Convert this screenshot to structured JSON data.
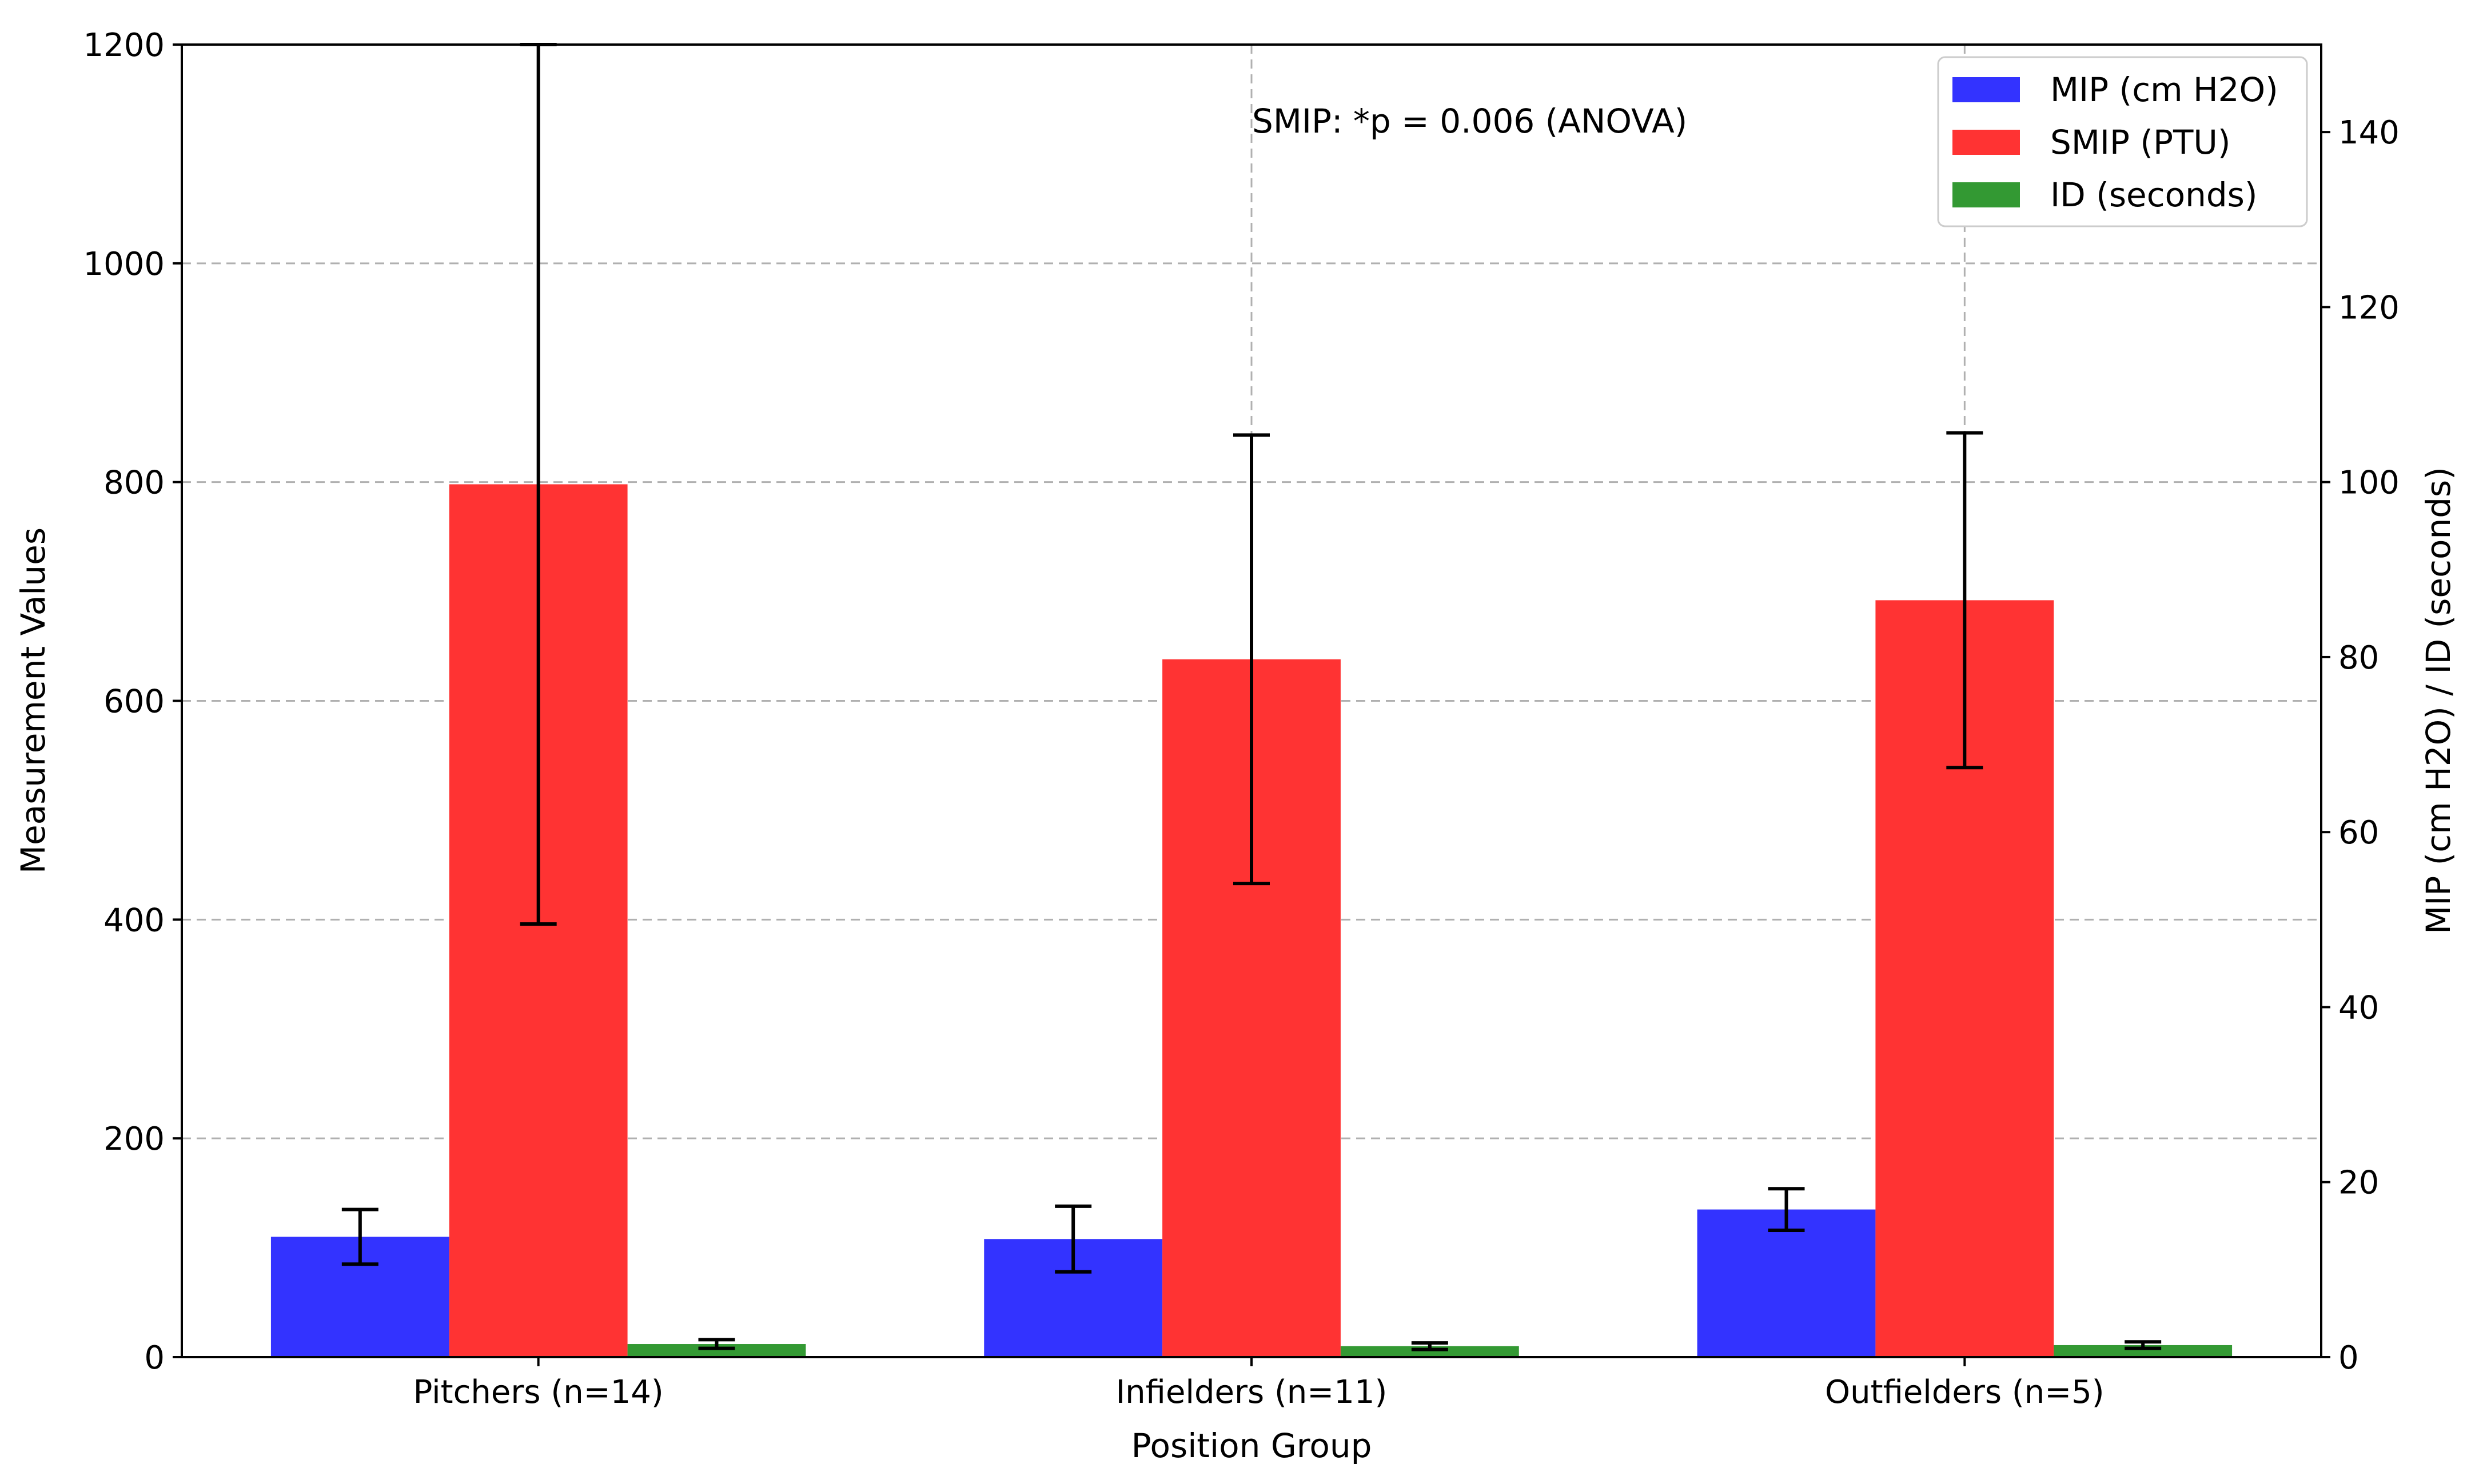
{
  "chart_data": {
    "type": "bar",
    "categories": [
      "Pitchers (n=14)",
      "Infielders (n=11)",
      "Outfielders (n=5)"
    ],
    "xlabel": "Position Group",
    "ylabel_left": "Measurement Values",
    "ylabel_right": "MIP (cm H2O) / ID (seconds)",
    "ylim_left": [
      0,
      1200
    ],
    "ylim_right": [
      0,
      150
    ],
    "yticks_left": [
      "0",
      "200",
      "400",
      "600",
      "800",
      "1000",
      "1200"
    ],
    "yticks_right": [
      "0",
      "20",
      "40",
      "60",
      "80",
      "100",
      "120",
      "140"
    ],
    "annotation": "SMIP: *p   = 0.006 (ANOVA)",
    "grid": true,
    "legend_position": "top-right",
    "series": [
      {
        "name": "MIP (cm H2O)",
        "color": "#3333ff",
        "axis": "left",
        "values": [
          110,
          108,
          135
        ],
        "errors": [
          25,
          30,
          19
        ]
      },
      {
        "name": "SMIP (PTU)",
        "color": "#ff3333",
        "axis": "left",
        "values": [
          798,
          638,
          692
        ],
        "errors": [
          402,
          205,
          153
        ]
      },
      {
        "name": "ID (seconds)",
        "color": "#339933",
        "axis": "left",
        "values": [
          12,
          10,
          11
        ],
        "errors": [
          4,
          3,
          3
        ]
      }
    ]
  }
}
